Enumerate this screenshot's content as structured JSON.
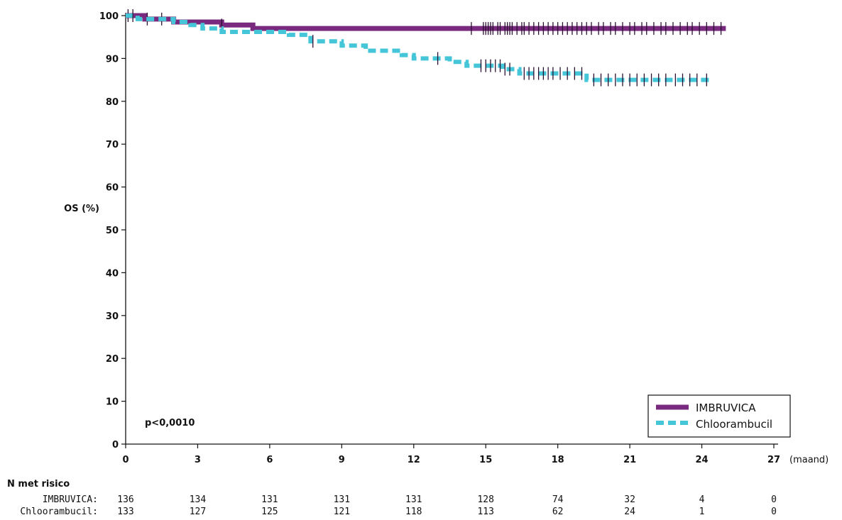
{
  "chart_data": {
    "type": "line",
    "title": "",
    "xlabel": "(maand)",
    "ylabel": "OS (%)",
    "xlim": [
      0,
      27
    ],
    "ylim": [
      0,
      100
    ],
    "xticks": [
      "0",
      "3",
      "6",
      "9",
      "12",
      "15",
      "18",
      "21",
      "24",
      "27"
    ],
    "yticks": [
      "0",
      "10",
      "20",
      "30",
      "40",
      "50",
      "60",
      "70",
      "80",
      "90",
      "100"
    ],
    "annotation": "p<0,0010",
    "legend_position": "bottom-right",
    "series": [
      {
        "name": "IMBRUVICA",
        "color": "#7a2a7e",
        "style": "solid",
        "steps": [
          [
            0,
            100
          ],
          [
            0.8,
            99.2
          ],
          [
            2.0,
            98.5
          ],
          [
            4.0,
            97.8
          ],
          [
            5.3,
            97.0
          ],
          [
            25.0,
            97.0
          ]
        ],
        "censors": [
          0.1,
          0.9,
          1.5,
          4.0,
          14.4,
          14.9,
          15.0,
          15.1,
          15.2,
          15.3,
          15.5,
          15.6,
          15.8,
          15.9,
          16.0,
          16.1,
          16.3,
          16.5,
          16.6,
          16.8,
          17.0,
          17.2,
          17.4,
          17.6,
          17.8,
          18.0,
          18.2,
          18.4,
          18.6,
          18.8,
          19.0,
          19.2,
          19.4,
          19.7,
          19.9,
          20.2,
          20.4,
          20.7,
          21.0,
          21.2,
          21.5,
          21.7,
          22.0,
          22.3,
          22.5,
          22.8,
          23.1,
          23.4,
          23.6,
          23.9,
          24.2,
          24.5,
          24.8
        ]
      },
      {
        "name": "Chloorambucil",
        "color": "#45c6d8",
        "style": "dashed",
        "steps": [
          [
            0,
            100
          ],
          [
            0.5,
            99.2
          ],
          [
            2.0,
            98.5
          ],
          [
            2.7,
            97.8
          ],
          [
            3.2,
            97.0
          ],
          [
            4.0,
            96.2
          ],
          [
            6.8,
            95.5
          ],
          [
            7.7,
            94.0
          ],
          [
            9.0,
            93.0
          ],
          [
            10.0,
            91.8
          ],
          [
            11.5,
            90.8
          ],
          [
            12.0,
            90.0
          ],
          [
            13.5,
            89.2
          ],
          [
            14.2,
            88.3
          ],
          [
            15.7,
            87.5
          ],
          [
            16.4,
            86.5
          ],
          [
            19.2,
            85.0
          ],
          [
            24.3,
            85.0
          ]
        ],
        "censors": [
          0.3,
          7.8,
          13.0,
          14.8,
          15.0,
          15.2,
          15.4,
          15.6,
          15.8,
          16.0,
          16.6,
          16.8,
          17.0,
          17.2,
          17.4,
          17.6,
          17.8,
          18.1,
          18.4,
          18.7,
          19.0,
          19.5,
          19.8,
          20.1,
          20.4,
          20.7,
          21.0,
          21.3,
          21.6,
          21.9,
          22.2,
          22.5,
          22.9,
          23.2,
          23.5,
          23.8,
          24.2
        ]
      }
    ],
    "at_risk": {
      "header": "N met risico",
      "times": [
        0,
        3,
        6,
        9,
        12,
        15,
        18,
        21,
        24,
        27
      ],
      "rows": [
        {
          "label": "IMBRUVICA:",
          "values": [
            "136",
            "134",
            "131",
            "131",
            "131",
            "128",
            "74",
            "32",
            "4",
            "0"
          ]
        },
        {
          "label": "Chloorambucil:",
          "values": [
            "133",
            "127",
            "125",
            "121",
            "118",
            "113",
            "62",
            "24",
            "1",
            "0"
          ]
        }
      ]
    }
  }
}
